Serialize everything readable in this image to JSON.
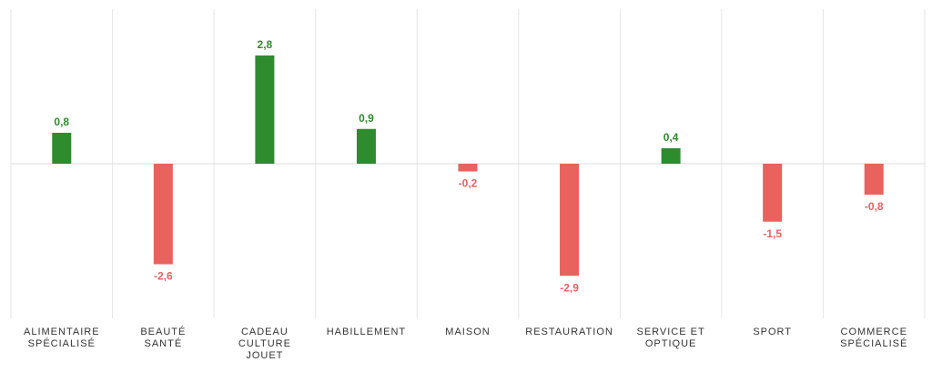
{
  "chart_data": {
    "type": "bar",
    "title": "",
    "xlabel": "",
    "ylabel": "",
    "ylim": [
      -3.9,
      4.0
    ],
    "grid": "vertical-separators",
    "legend": "none",
    "categories": [
      [
        "ALIMENTAIRE",
        "SPÉCIALISÉ"
      ],
      [
        "BEAUTÉ",
        "SANTÉ"
      ],
      [
        "CADEAU",
        "CULTURE",
        "JOUET"
      ],
      [
        "HABILLEMENT"
      ],
      [
        "MAISON"
      ],
      [
        "RESTAURATION"
      ],
      [
        "SERVICE ET",
        "OPTIQUE"
      ],
      [
        "SPORT"
      ],
      [
        "COMMERCE",
        "SPÉCIALISÉ"
      ]
    ],
    "values": [
      0.8,
      -2.6,
      2.8,
      0.9,
      -0.2,
      -2.9,
      0.4,
      -1.5,
      -0.8
    ],
    "value_labels": [
      "0,8",
      "-2,6",
      "2,8",
      "0,9",
      "-0,2",
      "-2,9",
      "0,4",
      "-1,5",
      "-0,8"
    ],
    "colors": {
      "positive": "#2e8b2e",
      "negative": "#e8625e",
      "grid": "#e6e6e6",
      "zero_line": "#dcdcdc"
    }
  }
}
